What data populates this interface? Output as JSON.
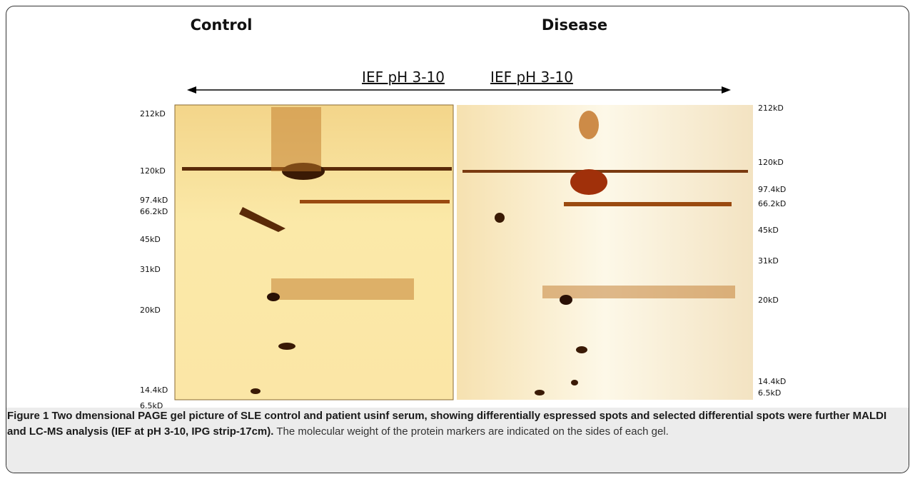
{
  "figure": {
    "panel_titles": [
      "Control",
      "Disease"
    ],
    "ief_labels": [
      "IEF pH 3-10",
      "IEF pH 3-10"
    ],
    "left_markers": [
      "212kD",
      "120kD",
      "97.4kD",
      "66.2kD",
      "45kD",
      "31kD",
      "20kD",
      "14.4kD",
      "6.5kD"
    ],
    "right_markers": [
      "212kD",
      "120kD",
      "97.4kD",
      "66.2kD",
      "45kD",
      "31kD",
      "20kD",
      "14.4kD",
      "6.5kD"
    ]
  },
  "caption": {
    "label": "Figure 1",
    "title": "Two dmensional PAGE gel picture of SLE control and patient usinf serum, showing differentially espressed spots and selected differential spots were further MALDI and LC-MS analysis (IEF at pH 3-10, IPG strip-17cm).",
    "text": "The molecular weight of the protein markers are indicated on the sides of each gel."
  }
}
